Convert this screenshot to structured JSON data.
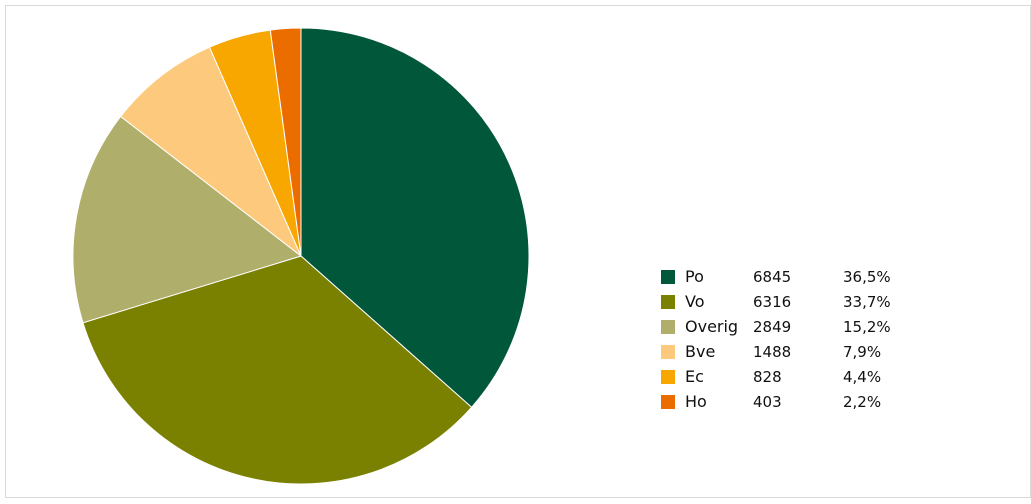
{
  "chart_data": {
    "type": "pie",
    "title": "",
    "legend_position": "right",
    "series": [
      {
        "label": "Po",
        "value": 6845,
        "percent": "36,5%",
        "color": "#00573a"
      },
      {
        "label": "Vo",
        "value": 6316,
        "percent": "33,7%",
        "color": "#7a8000"
      },
      {
        "label": "Overig",
        "value": 2849,
        "percent": "15,2%",
        "color": "#afae6b"
      },
      {
        "label": "Bve",
        "value": 1488,
        "percent": "7,9%",
        "color": "#fdca7d"
      },
      {
        "label": "Ec",
        "value": 828,
        "percent": "4,4%",
        "color": "#f8a700"
      },
      {
        "label": "Ho",
        "value": 403,
        "percent": "2,2%",
        "color": "#eb6d00"
      }
    ]
  }
}
